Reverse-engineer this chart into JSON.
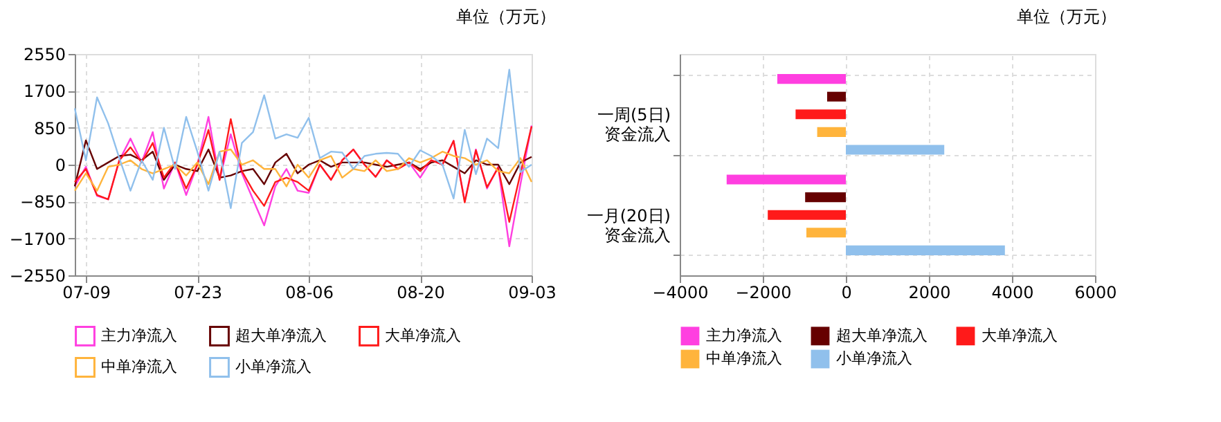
{
  "chart_data": [
    {
      "type": "line",
      "annotations": [
        "单位（万元）"
      ],
      "categories": [
        null,
        "07-09",
        null,
        null,
        null,
        null,
        null,
        null,
        null,
        null,
        null,
        "07-23",
        null,
        null,
        null,
        null,
        null,
        null,
        null,
        null,
        null,
        "08-06",
        null,
        null,
        null,
        null,
        null,
        null,
        null,
        null,
        null,
        "08-20",
        null,
        null,
        null,
        null,
        null,
        null,
        null,
        null,
        null,
        "09-03"
      ],
      "ylim": [
        -2550,
        2550
      ],
      "yticks": [
        -2550,
        -1700,
        -850,
        0,
        850,
        1700,
        2550
      ],
      "grid": true,
      "legend": "bottom",
      "series": [
        {
          "name": "主力净流入",
          "color": "#ff3fe0",
          "values": [
            -500,
            -50,
            -720,
            -800,
            100,
            600,
            50,
            750,
            -550,
            50,
            -700,
            0,
            1100,
            -350,
            700,
            -200,
            -800,
            -1400,
            -500,
            -100,
            -600,
            -650,
            0,
            -350,
            100,
            350,
            0,
            -280,
            100,
            -100,
            50,
            -300,
            100,
            0,
            550,
            -850,
            350,
            -550,
            -50,
            -1880,
            -450,
            900
          ]
        },
        {
          "name": "超大单净流入",
          "color": "#660000",
          "values": [
            -500,
            560,
            -100,
            50,
            200,
            230,
            100,
            300,
            -350,
            0,
            -100,
            -150,
            350,
            -300,
            -250,
            -150,
            -100,
            -450,
            50,
            250,
            -200,
            0,
            100,
            -50,
            50,
            50,
            50,
            0,
            -50,
            0,
            50,
            -100,
            50,
            100,
            -50,
            -200,
            100,
            0,
            0,
            -450,
            50,
            180
          ]
        },
        {
          "name": "大单净流入",
          "color": "#ff1a1a",
          "values": [
            -400,
            -100,
            -700,
            -800,
            100,
            400,
            50,
            500,
            -300,
            50,
            -550,
            0,
            800,
            -350,
            1050,
            -150,
            -600,
            -950,
            -400,
            -300,
            -400,
            -600,
            0,
            -350,
            100,
            350,
            0,
            -280,
            100,
            -100,
            50,
            -150,
            100,
            0,
            550,
            -870,
            330,
            -520,
            -70,
            -1320,
            -200,
            880
          ]
        },
        {
          "name": "中单净流入",
          "color": "#ffb43c",
          "values": [
            -600,
            -200,
            -600,
            -50,
            0,
            100,
            -100,
            -200,
            -100,
            0,
            -250,
            50,
            -450,
            300,
            350,
            0,
            100,
            -100,
            -100,
            -500,
            0,
            -300,
            100,
            200,
            -300,
            -100,
            -150,
            100,
            -150,
            -100,
            150,
            50,
            150,
            300,
            200,
            150,
            0,
            100,
            -150,
            -200,
            150,
            -400
          ]
        },
        {
          "name": "小单净流入",
          "color": "#90c0ec",
          "values": [
            1300,
            100,
            1550,
            950,
            150,
            -600,
            100,
            -350,
            850,
            -100,
            1100,
            300,
            -600,
            300,
            -1000,
            500,
            750,
            1600,
            600,
            700,
            620,
            1080,
            150,
            300,
            280,
            -100,
            200,
            250,
            270,
            250,
            -50,
            330,
            200,
            0,
            -780,
            800,
            -220,
            600,
            380,
            2190,
            -170,
            0
          ]
        }
      ]
    },
    {
      "type": "bar",
      "orientation": "horizontal",
      "annotations": [
        "单位（万元）"
      ],
      "categories": [
        "一周(5日)\n资金流入",
        "一月(20日)\n资金流入"
      ],
      "xlim": [
        -4000,
        6000
      ],
      "xticks": [
        -4000,
        -2000,
        0,
        2000,
        4000,
        6000
      ],
      "grid": true,
      "legend": "bottom",
      "series": [
        {
          "name": "主力净流入",
          "color": "#ff3fe0",
          "values": [
            -1650,
            -2870
          ]
        },
        {
          "name": "超大单净流入",
          "color": "#660000",
          "values": [
            -450,
            -980
          ]
        },
        {
          "name": "大单净流入",
          "color": "#ff1a1a",
          "values": [
            -1210,
            -1880
          ]
        },
        {
          "name": "中单净流入",
          "color": "#ffb43c",
          "values": [
            -690,
            -950
          ]
        },
        {
          "name": "小单净流入",
          "color": "#90c0ec",
          "values": [
            2370,
            3830
          ]
        }
      ]
    }
  ]
}
